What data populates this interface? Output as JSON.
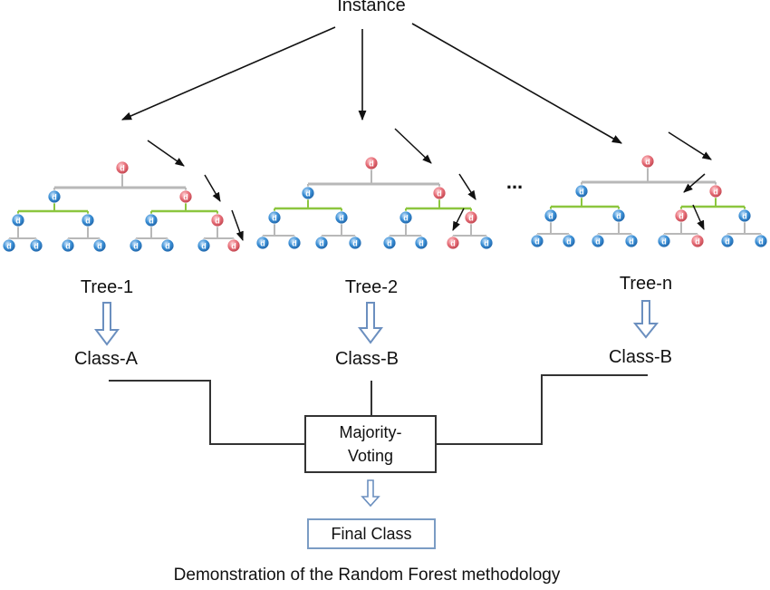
{
  "diagram": {
    "instance_label": "Instance",
    "ellipsis": "...",
    "trees": [
      {
        "name": "Tree-1",
        "class": "Class-A"
      },
      {
        "name": "Tree-2",
        "class": "Class-B"
      },
      {
        "name": "Tree-n",
        "class": "Class-B"
      }
    ],
    "voting": {
      "line1": "Majority-",
      "line2": "Voting"
    },
    "final_class": "Final Class",
    "caption": "Demonstration of the Random Forest methodology",
    "node_letter": "d",
    "colors": {
      "red_node": "#e8707a",
      "blue_node": "#3a8fd6",
      "green_branch": "#8cc63f",
      "grey_branch": "#b8b8b8",
      "arrow": "#7b9cc4"
    }
  }
}
